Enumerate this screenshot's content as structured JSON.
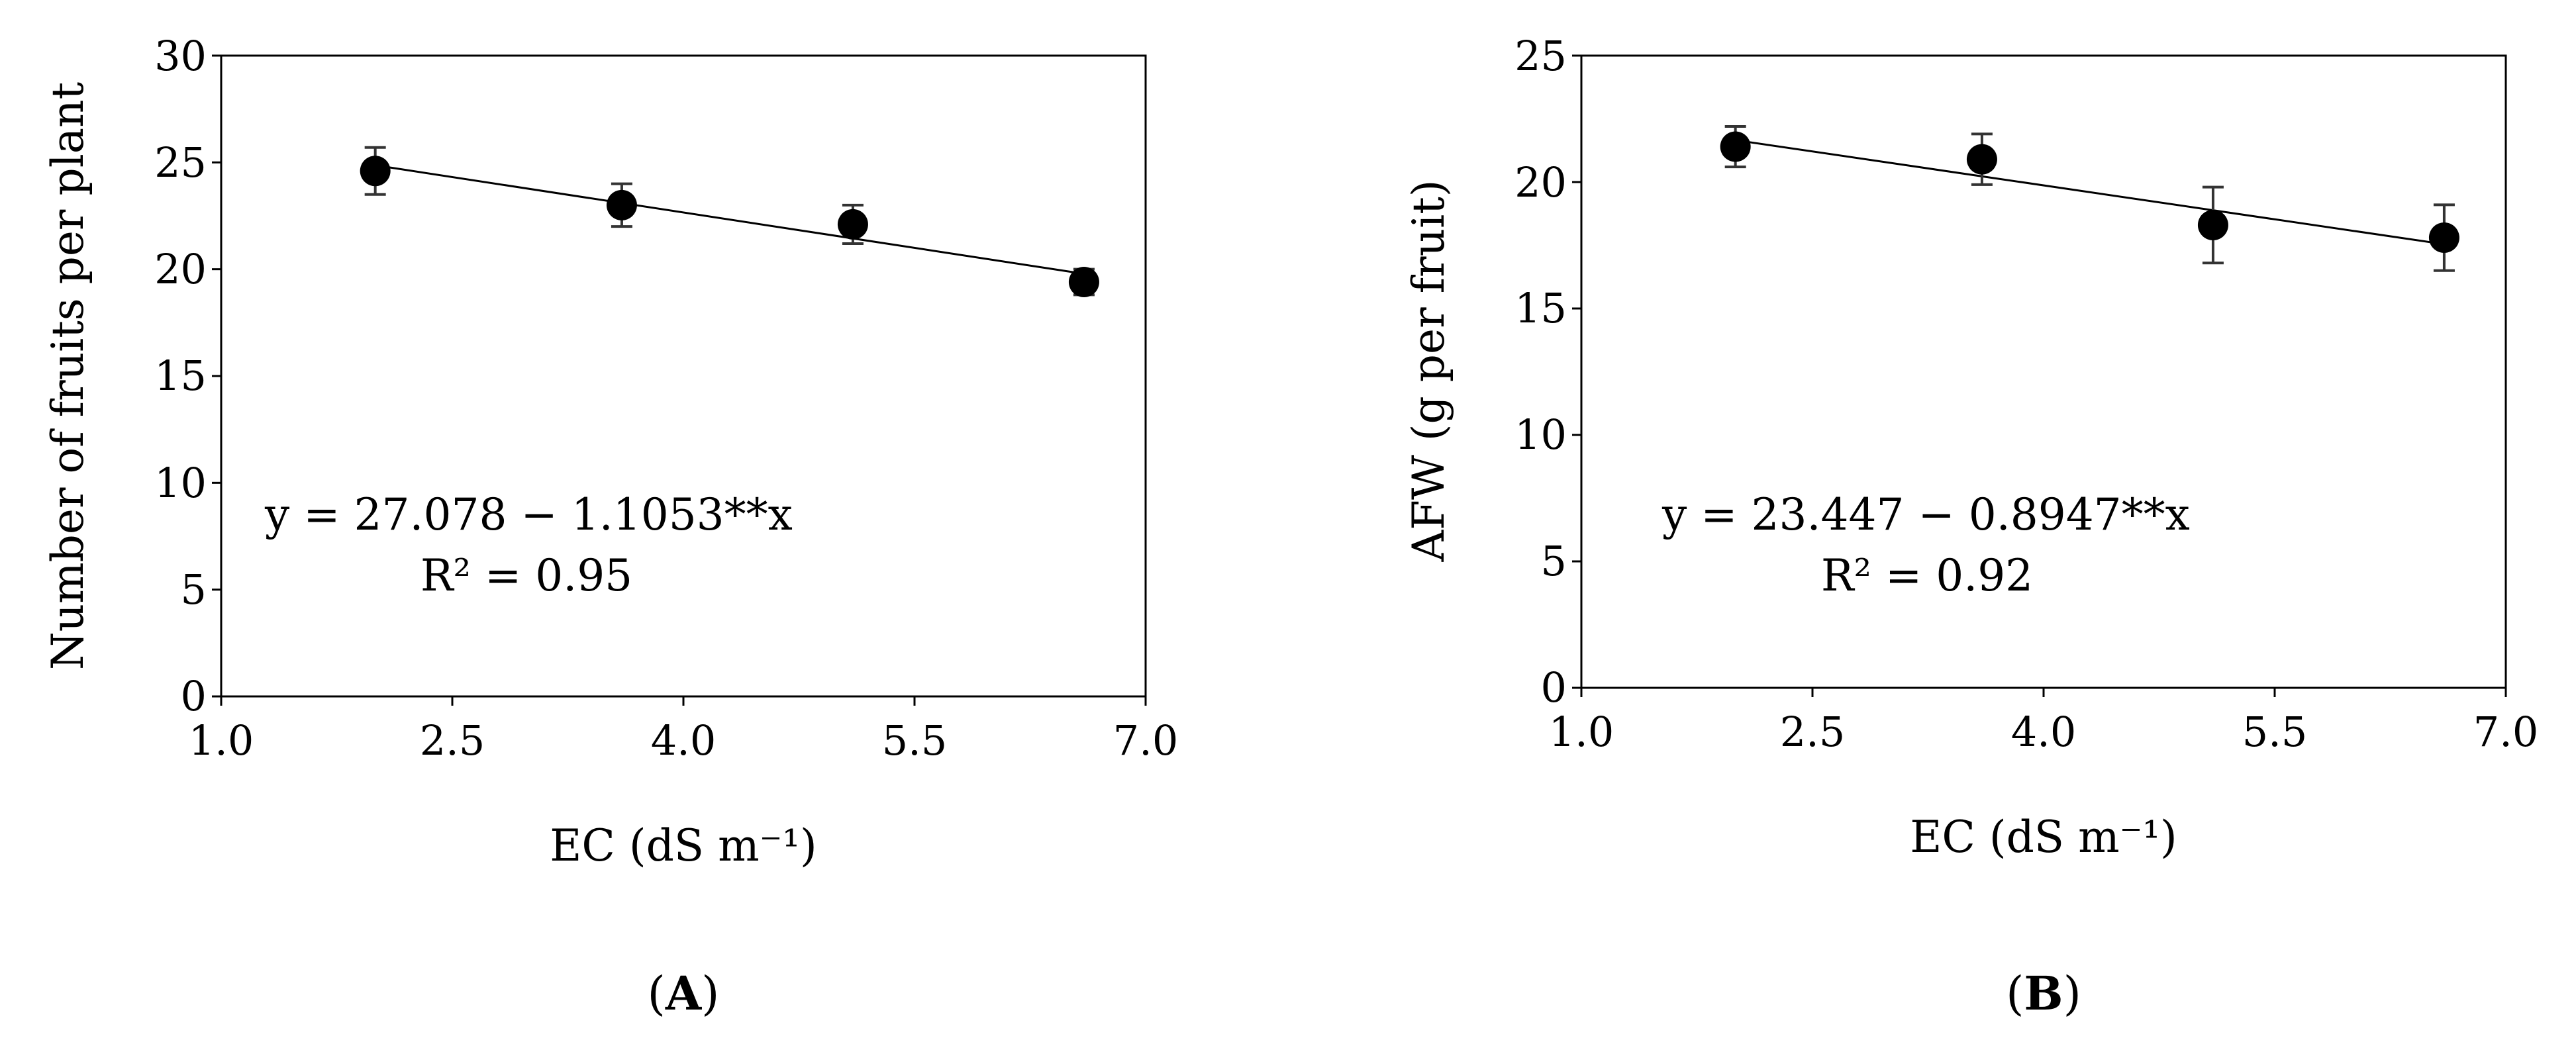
{
  "chart_data": [
    {
      "type": "scatter",
      "panel_label": "A",
      "xlabel": "EC (dS m⁻¹)",
      "ylabel": "Number of fruits per plant",
      "xlim": [
        1.0,
        7.0
      ],
      "ylim": [
        0,
        30
      ],
      "x_ticks": [
        "1.0",
        "2.5",
        "4.0",
        "5.5",
        "7.0"
      ],
      "y_ticks": [
        "0",
        "5",
        "10",
        "15",
        "20",
        "25",
        "30"
      ],
      "grid": false,
      "series": [
        {
          "x": [
            2.0,
            3.6,
            5.1,
            6.6
          ],
          "y": [
            24.6,
            23.0,
            22.1,
            19.4
          ],
          "error": [
            1.1,
            1.0,
            0.9,
            0.6
          ]
        }
      ],
      "trendline": {
        "intercept": 27.078,
        "slope": -1.1053
      },
      "equation": "y = 27.078 − 1.1053**x",
      "r_squared": "R² = 0.95"
    },
    {
      "type": "scatter",
      "panel_label": "B",
      "xlabel": "EC (dS m⁻¹)",
      "ylabel": "AFW (g per fruit)",
      "xlim": [
        1.0,
        7.0
      ],
      "ylim": [
        0,
        25
      ],
      "x_ticks": [
        "1.0",
        "2.5",
        "4.0",
        "5.5",
        "7.0"
      ],
      "y_ticks": [
        "0",
        "5",
        "10",
        "15",
        "20",
        "25"
      ],
      "grid": false,
      "series": [
        {
          "x": [
            2.0,
            3.6,
            5.1,
            6.6
          ],
          "y": [
            21.4,
            20.9,
            18.3,
            17.8
          ],
          "error": [
            0.8,
            1.0,
            1.5,
            1.3
          ]
        }
      ],
      "trendline": {
        "intercept": 23.447,
        "slope": -0.8947
      },
      "equation": "y = 23.447 − 0.8947**x",
      "r_squared": "R² = 0.92"
    }
  ]
}
